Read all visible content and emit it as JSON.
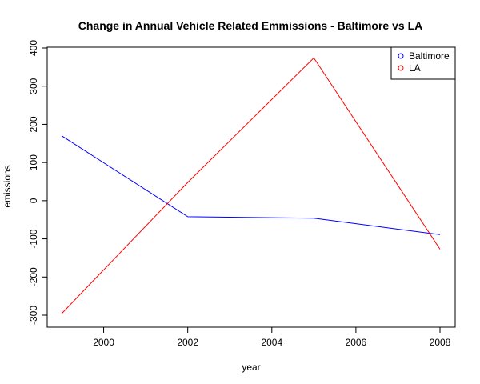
{
  "chart_data": {
    "type": "line",
    "title": "Change in Annual Vehicle Related Emmissions - Baltimore vs LA",
    "xlabel": "year",
    "ylabel": "emissions",
    "x": [
      1999,
      2002,
      2005,
      2008
    ],
    "xlim": [
      1999,
      2008
    ],
    "ylim": [
      -300,
      400
    ],
    "xticks": [
      2000,
      2002,
      2004,
      2006,
      2008
    ],
    "yticks": [
      -300,
      -200,
      -100,
      0,
      100,
      200,
      300,
      400
    ],
    "grid": false,
    "legend_position": "top-right",
    "series": [
      {
        "name": "Baltimore",
        "color": "#0000ff",
        "values": [
          170,
          -42,
          -46,
          -89
        ]
      },
      {
        "name": "LA",
        "color": "#ff0000",
        "values": [
          -296,
          48,
          374,
          -127
        ]
      }
    ]
  }
}
